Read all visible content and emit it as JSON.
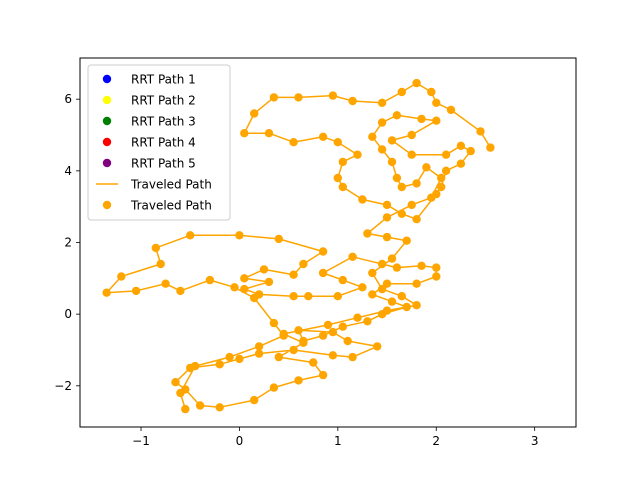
{
  "chart_data": {
    "type": "scatter",
    "title": "",
    "xlabel": "",
    "ylabel": "",
    "xlim": [
      -1.62,
      3.42
    ],
    "ylim": [
      -3.15,
      7.15
    ],
    "xticks": [
      -1,
      0,
      1,
      2,
      3
    ],
    "yticks": [
      -2,
      0,
      2,
      4,
      6
    ],
    "grid": false,
    "legend_position": "upper-left",
    "legend": [
      {
        "label": "RRT Path 1",
        "kind": "marker",
        "color": "#0000ff"
      },
      {
        "label": "RRT Path 2",
        "kind": "marker",
        "color": "#ffff00"
      },
      {
        "label": "RRT Path 3",
        "kind": "marker",
        "color": "#008000"
      },
      {
        "label": "RRT Path 4",
        "kind": "marker",
        "color": "#ff0000"
      },
      {
        "label": "RRT Path 5",
        "kind": "marker",
        "color": "#800080"
      },
      {
        "label": "Traveled Path",
        "kind": "line",
        "color": "#ffa500"
      },
      {
        "label": "Traveled Path",
        "kind": "marker",
        "color": "#ffa500"
      }
    ],
    "series": [
      {
        "name": "Traveled Path",
        "color": "#ffa500",
        "points": [
          [
            -0.55,
            -2.65
          ],
          [
            -0.6,
            -2.2
          ],
          [
            -0.45,
            -1.45
          ],
          [
            -0.1,
            -1.2
          ],
          [
            0.2,
            -0.9
          ],
          [
            0.45,
            -0.6
          ],
          [
            0.35,
            -0.25
          ],
          [
            0.15,
            0.45
          ],
          [
            -0.05,
            0.75
          ],
          [
            -0.3,
            0.95
          ],
          [
            -0.6,
            0.65
          ],
          [
            -0.75,
            0.85
          ],
          [
            -1.05,
            0.65
          ],
          [
            -1.35,
            0.6
          ],
          [
            -1.2,
            1.05
          ],
          [
            -0.8,
            1.4
          ],
          [
            -0.85,
            1.85
          ],
          [
            -0.5,
            2.2
          ],
          [
            0.0,
            2.2
          ],
          [
            0.4,
            2.1
          ],
          [
            0.85,
            1.75
          ],
          [
            0.65,
            1.4
          ],
          [
            0.55,
            1.1
          ],
          [
            0.25,
            1.25
          ],
          [
            0.05,
            1.0
          ],
          [
            0.3,
            0.9
          ],
          [
            0.05,
            0.7
          ],
          [
            0.2,
            0.55
          ],
          [
            0.55,
            0.5
          ],
          [
            0.7,
            0.5
          ],
          [
            1.0,
            0.5
          ],
          [
            1.25,
            0.75
          ],
          [
            1.05,
            0.95
          ],
          [
            0.85,
            1.15
          ],
          [
            1.15,
            1.6
          ],
          [
            1.45,
            1.4
          ],
          [
            1.6,
            1.3
          ],
          [
            1.85,
            1.35
          ],
          [
            2.0,
            1.3
          ],
          [
            2.0,
            1.05
          ],
          [
            1.8,
            0.85
          ],
          [
            1.5,
            0.85
          ],
          [
            1.35,
            0.55
          ],
          [
            1.55,
            0.35
          ],
          [
            1.7,
            0.2
          ],
          [
            1.45,
            0.0
          ],
          [
            1.3,
            -0.2
          ],
          [
            1.05,
            -0.35
          ],
          [
            0.85,
            -0.6
          ],
          [
            0.65,
            -0.75
          ],
          [
            0.6,
            -0.45
          ],
          [
            0.95,
            -0.5
          ],
          [
            1.1,
            -0.75
          ],
          [
            1.4,
            -0.9
          ],
          [
            1.15,
            -1.2
          ],
          [
            0.95,
            -1.15
          ],
          [
            0.55,
            -1.0
          ],
          [
            0.2,
            -1.1
          ],
          [
            0.0,
            -1.25
          ],
          [
            -0.2,
            -1.4
          ],
          [
            -0.5,
            -1.5
          ],
          [
            -0.65,
            -1.9
          ],
          [
            -0.55,
            -2.1
          ],
          [
            -0.4,
            -2.55
          ],
          [
            -0.2,
            -2.6
          ],
          [
            0.15,
            -2.4
          ],
          [
            0.35,
            -2.05
          ],
          [
            0.6,
            -1.85
          ],
          [
            0.85,
            -1.7
          ],
          [
            0.75,
            -1.35
          ],
          [
            0.4,
            -1.2
          ],
          [
            0.65,
            -0.8
          ],
          [
            0.45,
            -0.55
          ],
          [
            0.9,
            -0.3
          ],
          [
            1.2,
            -0.1
          ],
          [
            1.5,
            0.1
          ],
          [
            1.8,
            0.25
          ],
          [
            1.65,
            0.5
          ],
          [
            1.45,
            0.7
          ],
          [
            1.35,
            1.15
          ],
          [
            1.55,
            1.55
          ],
          [
            1.7,
            2.05
          ],
          [
            1.5,
            2.15
          ],
          [
            1.3,
            2.25
          ],
          [
            1.5,
            2.7
          ],
          [
            1.75,
            3.05
          ],
          [
            1.95,
            3.25
          ],
          [
            2.05,
            3.8
          ],
          [
            1.9,
            4.1
          ],
          [
            1.8,
            3.65
          ],
          [
            1.65,
            3.55
          ],
          [
            1.6,
            3.8
          ],
          [
            1.55,
            4.25
          ],
          [
            1.45,
            4.6
          ],
          [
            1.35,
            4.95
          ],
          [
            1.45,
            5.35
          ],
          [
            1.6,
            5.55
          ],
          [
            1.85,
            5.45
          ],
          [
            2.0,
            5.4
          ],
          [
            1.75,
            5.0
          ],
          [
            1.55,
            4.85
          ],
          [
            1.75,
            4.45
          ],
          [
            2.1,
            4.45
          ],
          [
            2.25,
            4.7
          ],
          [
            2.35,
            4.55
          ],
          [
            2.25,
            4.2
          ],
          [
            2.1,
            4.0
          ],
          [
            2.05,
            3.55
          ],
          [
            2.0,
            3.35
          ],
          [
            1.8,
            2.65
          ],
          [
            1.65,
            2.8
          ],
          [
            1.5,
            3.05
          ],
          [
            1.25,
            3.2
          ],
          [
            1.05,
            3.55
          ],
          [
            1.0,
            3.8
          ],
          [
            1.05,
            4.25
          ],
          [
            1.2,
            4.45
          ],
          [
            1.0,
            4.8
          ],
          [
            0.85,
            4.95
          ],
          [
            0.55,
            4.8
          ],
          [
            0.3,
            5.05
          ],
          [
            0.05,
            5.05
          ],
          [
            0.15,
            5.6
          ],
          [
            0.35,
            6.05
          ],
          [
            0.6,
            6.05
          ],
          [
            0.95,
            6.1
          ],
          [
            1.15,
            5.95
          ],
          [
            1.45,
            5.9
          ],
          [
            1.65,
            6.2
          ],
          [
            1.8,
            6.45
          ],
          [
            1.95,
            6.2
          ],
          [
            2.0,
            5.9
          ],
          [
            2.15,
            5.7
          ],
          [
            2.45,
            5.1
          ],
          [
            2.55,
            4.65
          ]
        ]
      }
    ]
  }
}
